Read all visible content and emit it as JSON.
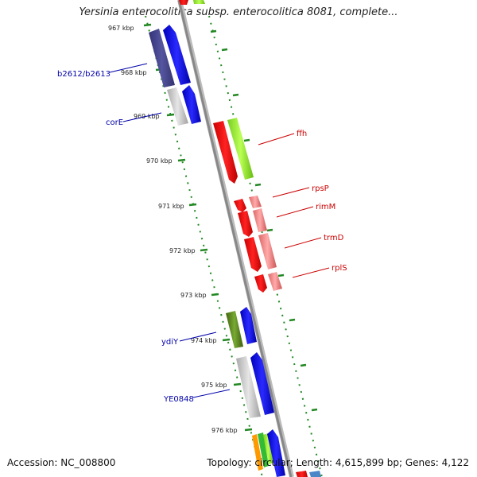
{
  "title": "Yersinia enterocolitica subsp. enterocolitica 8081, complete...",
  "accession_label": "Accession: NC_008800",
  "topology_label": "Topology: circular; Length: 4,615,899 bp; Genes: 4,122",
  "ticks": [
    {
      "label": "967 kbp"
    },
    {
      "label": "968 kbp"
    },
    {
      "label": "969 kbp"
    },
    {
      "label": "970 kbp"
    },
    {
      "label": "971 kbp"
    },
    {
      "label": "972 kbp"
    },
    {
      "label": "973 kbp"
    },
    {
      "label": "974 kbp"
    },
    {
      "label": "975 kbp"
    },
    {
      "label": "976 kbp"
    }
  ],
  "left_genes": [
    {
      "name": "b2612/b2613",
      "color": "#0000aa"
    },
    {
      "name": "corE",
      "color": "#0000aa"
    },
    {
      "name": "ydiY",
      "color": "#0000aa"
    },
    {
      "name": "YE0848",
      "color": "#0000aa"
    }
  ],
  "right_genes": [
    {
      "name": "ffh",
      "color": "#cc0000"
    },
    {
      "name": "rpsP",
      "color": "#cc0000"
    },
    {
      "name": "rimM",
      "color": "#cc0000"
    },
    {
      "name": "trmD",
      "color": "#cc0000"
    },
    {
      "name": "rplS",
      "color": "#cc0000"
    }
  ],
  "colors": {
    "backbone": "#888888",
    "tick_marks": "#228822",
    "gene_blue": "#0000ee",
    "gene_purple": "#44448a",
    "gene_gray": "#c8c8c8",
    "gene_red": "#ee0000",
    "gene_lime": "#99ee33",
    "gene_pink": "#ee8888",
    "gene_olive": "#558822",
    "gene_orange": "#ff9900",
    "gene_green": "#33bb33"
  }
}
